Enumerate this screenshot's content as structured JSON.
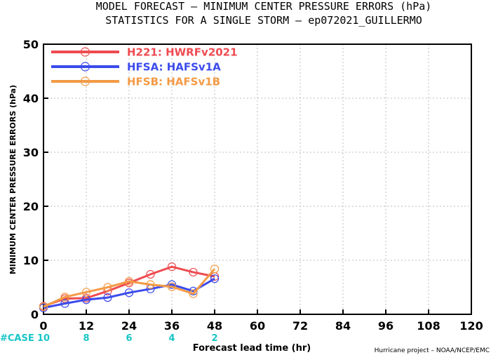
{
  "chart_data": {
    "type": "line",
    "title_line1": "MODEL FORECAST – MINIMUM CENTER PRESSURE ERRORS (hPa)",
    "title_line2": "STATISTICS FOR A SINGLE STORM – ep072021_GUILLERMO",
    "xlabel": "Forecast lead time (hr)",
    "ylabel": "MINIMUM CENTER PRESSURE ERRORS (hPa)",
    "xlim": [
      0,
      120
    ],
    "ylim": [
      0,
      50
    ],
    "xticks": [
      0,
      12,
      24,
      36,
      48,
      60,
      72,
      84,
      96,
      108,
      120
    ],
    "yticks": [
      0,
      10,
      20,
      30,
      40,
      50
    ],
    "grid": true,
    "legend_position": "top-left",
    "case_label": "#CASE",
    "cases": [
      {
        "x": 0,
        "n": "10"
      },
      {
        "x": 12,
        "n": "8"
      },
      {
        "x": 24,
        "n": "6"
      },
      {
        "x": 36,
        "n": "4"
      },
      {
        "x": 48,
        "n": "2"
      }
    ],
    "credit": "Hurricane project – NOAA/NCEP/EMC",
    "series": [
      {
        "name": "H221:  HWRFv2021",
        "color": "#ee4b50",
        "x": [
          0,
          6,
          12,
          18,
          24,
          30,
          36,
          42,
          48
        ],
        "y": [
          1.5,
          2.9,
          3.0,
          4.3,
          5.8,
          7.4,
          8.8,
          7.8,
          7.0
        ]
      },
      {
        "name": "HFSA:  HAFSv1A",
        "color": "#3b4bec",
        "x": [
          0,
          6,
          12,
          18,
          24,
          30,
          36,
          42,
          48
        ],
        "y": [
          1.2,
          2.0,
          2.7,
          3.1,
          4.0,
          4.7,
          5.5,
          4.3,
          6.6
        ]
      },
      {
        "name": "HFSB:  HAFSv1B",
        "color": "#f39a45",
        "x": [
          0,
          6,
          12,
          18,
          24,
          30,
          36,
          42,
          48
        ],
        "y": [
          1.4,
          3.2,
          4.1,
          5.0,
          6.1,
          5.5,
          5.1,
          3.8,
          8.4
        ]
      }
    ]
  }
}
